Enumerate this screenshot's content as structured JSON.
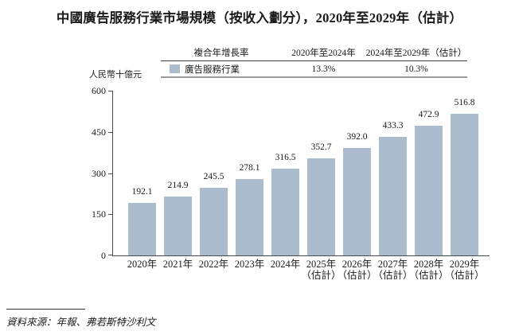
{
  "title": "中國廣告服務行業市場規模（按收入劃分），2020年至2029年（估計）",
  "y_axis_unit": "人民幣十億元",
  "legend_table": {
    "col1_header": "複合年增長率",
    "col2_header": "2020年至2024年",
    "col3_header": "2024年至2029年（估計）",
    "row_label": "廣告服務行業",
    "cagr_2020_2024": "13.3%",
    "cagr_2024_2029": "10.3%"
  },
  "source": "資料來源：年報、弗若斯特沙利文",
  "colors": {
    "bar_fill": "#aabcce",
    "axis_line": "#4a4a4a",
    "text": "#1a1a1a"
  },
  "chart_data": {
    "type": "bar",
    "title": "中國廣告服務行業市場規模（按收入劃分），2020年至2029年（估計）",
    "ylabel": "人民幣十億元",
    "categories": [
      {
        "label": "2020年",
        "note": ""
      },
      {
        "label": "2021年",
        "note": ""
      },
      {
        "label": "2022年",
        "note": ""
      },
      {
        "label": "2023年",
        "note": ""
      },
      {
        "label": "2024年",
        "note": ""
      },
      {
        "label": "2025年",
        "note": "（估計）"
      },
      {
        "label": "2026年",
        "note": "（估計）"
      },
      {
        "label": "2027年",
        "note": "（估計）"
      },
      {
        "label": "2028年",
        "note": "（估計）"
      },
      {
        "label": "2029年",
        "note": "（估計）"
      }
    ],
    "values": [
      192.1,
      214.9,
      245.5,
      278.1,
      316.5,
      352.7,
      392.0,
      433.3,
      472.9,
      516.8
    ],
    "value_labels": [
      "192.1",
      "214.9",
      "245.5",
      "278.1",
      "316.5",
      "352.7",
      "392.0",
      "433.3",
      "472.9",
      "516.8"
    ],
    "series_name": "廣告服務行業",
    "ylim": [
      0,
      600
    ],
    "yticks": [
      0,
      150,
      300,
      450,
      600
    ],
    "grid": false,
    "legend_position": "top"
  }
}
